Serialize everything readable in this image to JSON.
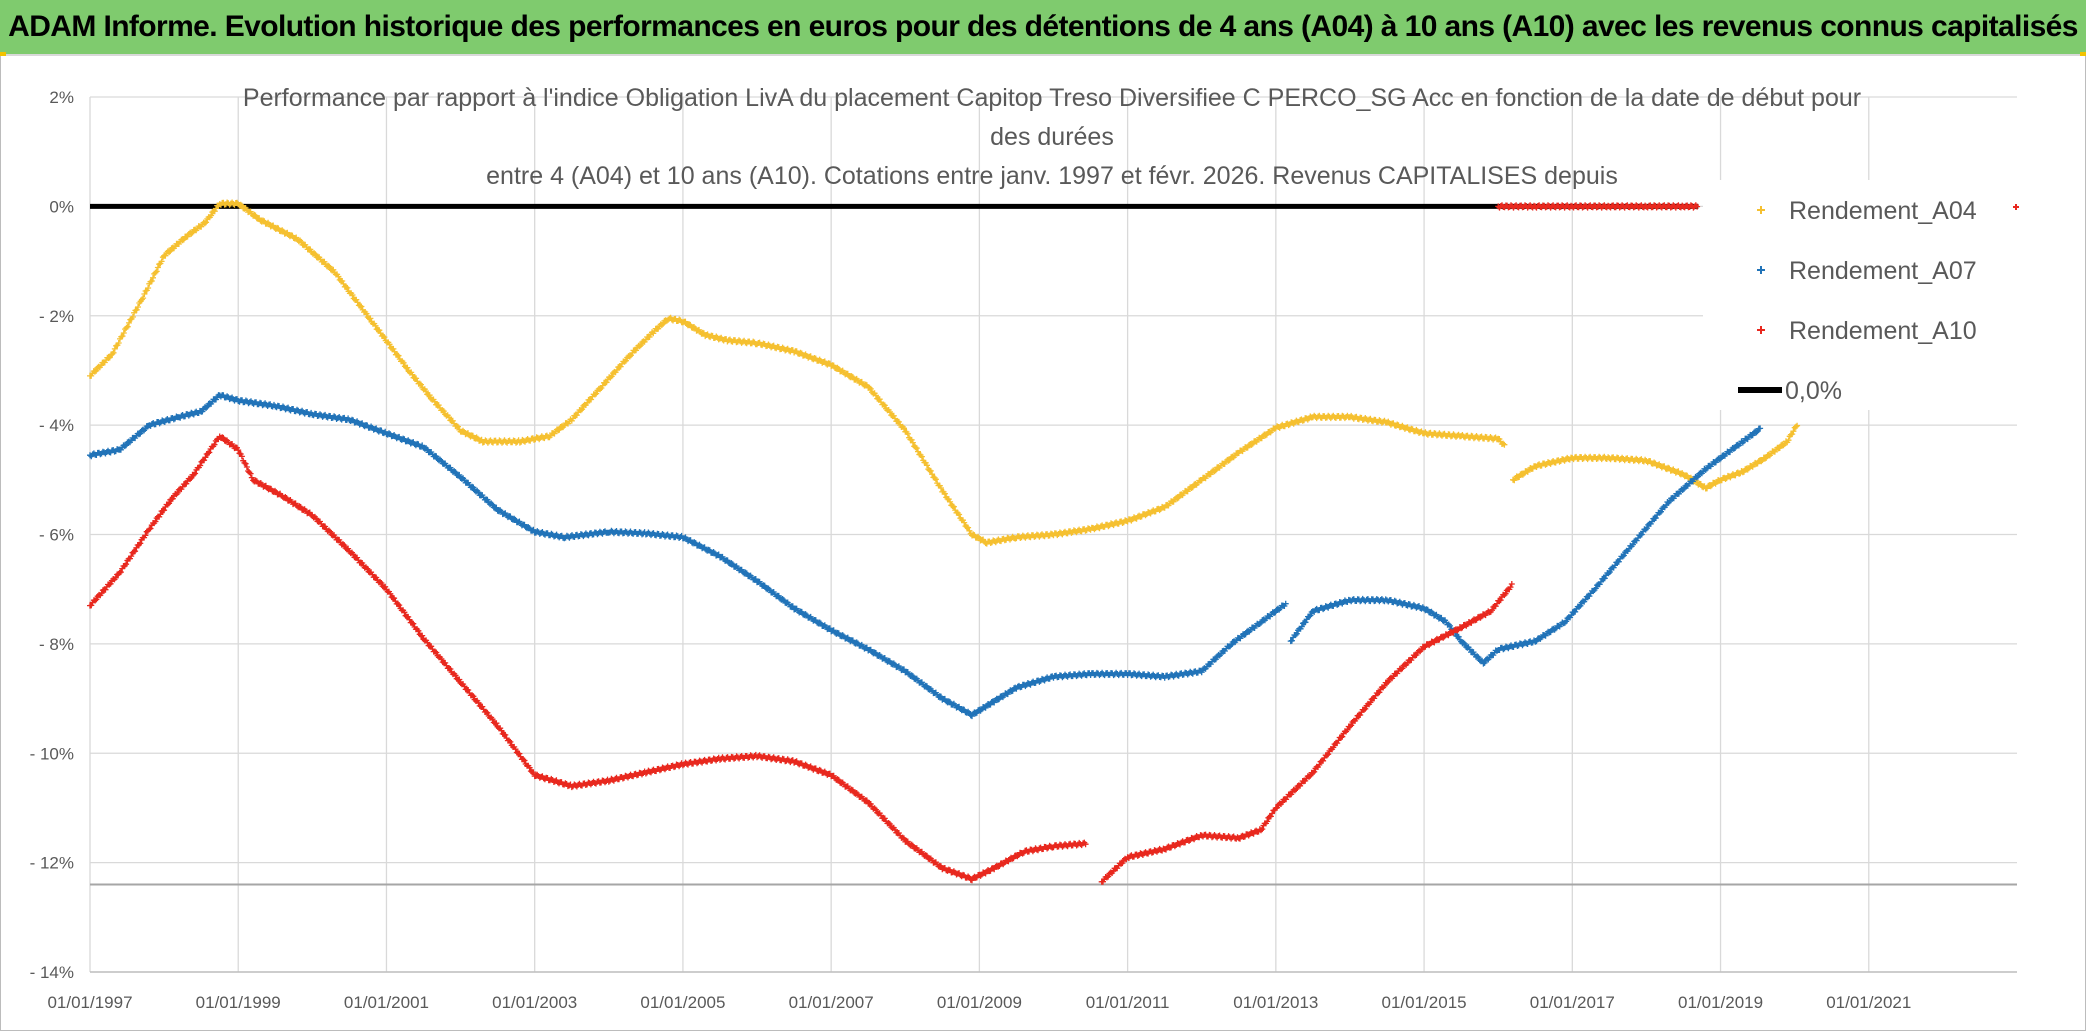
{
  "banner": {
    "title": "ADAM Informe. Evolution historique des performances en euros pour des détentions de 4 ans (A04) à 10 ans (A10) avec les revenus connus capitalisés"
  },
  "chart_data": {
    "type": "scatter",
    "title_lines": [
      "Performance par rapport à l'indice Obligation LivA  du placement Capitop Treso Diversifiee C PERCO_SG Acc en fonction de la date de début pour",
      "des durées",
      "entre 4 (A04) et 10 ans (A10). Cotations entre janv. 1997 et févr. 2026. Revenus CAPITALISES depuis"
    ],
    "xlabel": "",
    "ylabel": "",
    "x_tick_labels": [
      "01/01/1997",
      "01/01/1999",
      "01/01/2001",
      "01/01/2003",
      "01/01/2005",
      "01/01/2007",
      "01/01/2009",
      "01/01/2011",
      "01/01/2013",
      "01/01/2015",
      "01/01/2017",
      "01/01/2019",
      "01/01/2021"
    ],
    "xlim": [
      1997.0,
      2023.0
    ],
    "y_tick_labels": [
      "2%",
      "0%",
      "- 2%",
      "- 4%",
      "- 6%",
      "- 8%",
      "- 10%",
      "- 12%",
      "- 14%"
    ],
    "y_tick_values": [
      2,
      0,
      -2,
      -4,
      -6,
      -8,
      -10,
      -12,
      -14
    ],
    "ylim": [
      -14,
      2
    ],
    "reference_hline": -12.4,
    "legend_position": "right",
    "series": [
      {
        "name": "Rendement_A04",
        "color": "#f5c030",
        "marker": "+",
        "segments": [
          [
            [
              1997.0,
              -3.1
            ],
            [
              1997.3,
              -2.7
            ],
            [
              1997.7,
              -1.7
            ],
            [
              1998.0,
              -0.9
            ],
            [
              1998.3,
              -0.55
            ],
            [
              1998.55,
              -0.3
            ],
            [
              1998.75,
              0.05
            ],
            [
              1999.0,
              0.05
            ],
            [
              1999.3,
              -0.25
            ],
            [
              1999.8,
              -0.6
            ],
            [
              2000.3,
              -1.2
            ],
            [
              2000.8,
              -2.1
            ],
            [
              2001.3,
              -3.0
            ],
            [
              2001.6,
              -3.5
            ],
            [
              2002.0,
              -4.1
            ],
            [
              2002.3,
              -4.3
            ],
            [
              2002.8,
              -4.3
            ],
            [
              2003.2,
              -4.2
            ],
            [
              2003.5,
              -3.9
            ],
            [
              2003.9,
              -3.3
            ],
            [
              2004.3,
              -2.7
            ],
            [
              2004.6,
              -2.3
            ],
            [
              2004.8,
              -2.05
            ],
            [
              2005.0,
              -2.1
            ],
            [
              2005.3,
              -2.35
            ],
            [
              2005.6,
              -2.45
            ],
            [
              2006.0,
              -2.5
            ],
            [
              2006.5,
              -2.65
            ],
            [
              2007.0,
              -2.9
            ],
            [
              2007.5,
              -3.3
            ],
            [
              2008.0,
              -4.1
            ],
            [
              2008.5,
              -5.2
            ],
            [
              2008.9,
              -6.0
            ],
            [
              2009.1,
              -6.15
            ],
            [
              2009.5,
              -6.05
            ],
            [
              2010.0,
              -6.0
            ],
            [
              2010.5,
              -5.9
            ],
            [
              2011.0,
              -5.75
            ],
            [
              2011.5,
              -5.5
            ],
            [
              2012.0,
              -5.0
            ],
            [
              2012.5,
              -4.5
            ],
            [
              2013.0,
              -4.05
            ],
            [
              2013.5,
              -3.85
            ],
            [
              2014.0,
              -3.85
            ],
            [
              2014.5,
              -3.95
            ],
            [
              2015.0,
              -4.15
            ],
            [
              2015.5,
              -4.2
            ],
            [
              2016.0,
              -4.25
            ],
            [
              2016.1,
              -4.4
            ]
          ],
          [
            [
              2016.2,
              -5.0
            ],
            [
              2016.5,
              -4.75
            ],
            [
              2017.0,
              -4.6
            ],
            [
              2017.5,
              -4.6
            ],
            [
              2018.0,
              -4.65
            ],
            [
              2018.5,
              -4.9
            ],
            [
              2018.8,
              -5.15
            ],
            [
              2019.0,
              -5.0
            ],
            [
              2019.3,
              -4.85
            ],
            [
              2019.6,
              -4.6
            ],
            [
              2019.9,
              -4.3
            ],
            [
              2020.05,
              -3.95
            ]
          ]
        ]
      },
      {
        "name": "Rendement_A07",
        "color": "#2173b8",
        "marker": "+",
        "segments": [
          [
            [
              1997.0,
              -4.55
            ],
            [
              1997.4,
              -4.45
            ],
            [
              1997.8,
              -4.0
            ],
            [
              1998.2,
              -3.85
            ],
            [
              1998.5,
              -3.75
            ],
            [
              1998.75,
              -3.45
            ],
            [
              1999.0,
              -3.55
            ],
            [
              1999.5,
              -3.65
            ],
            [
              2000.0,
              -3.8
            ],
            [
              2000.5,
              -3.9
            ],
            [
              2001.0,
              -4.15
            ],
            [
              2001.5,
              -4.4
            ],
            [
              2002.0,
              -4.95
            ],
            [
              2002.5,
              -5.55
            ],
            [
              2003.0,
              -5.95
            ],
            [
              2003.4,
              -6.05
            ],
            [
              2004.0,
              -5.95
            ],
            [
              2004.5,
              -5.98
            ],
            [
              2005.0,
              -6.05
            ],
            [
              2005.5,
              -6.4
            ],
            [
              2006.0,
              -6.85
            ],
            [
              2006.5,
              -7.35
            ],
            [
              2007.0,
              -7.75
            ],
            [
              2007.5,
              -8.1
            ],
            [
              2008.0,
              -8.5
            ],
            [
              2008.5,
              -9.0
            ],
            [
              2008.9,
              -9.3
            ],
            [
              2009.2,
              -9.05
            ],
            [
              2009.5,
              -8.8
            ],
            [
              2010.0,
              -8.6
            ],
            [
              2010.5,
              -8.55
            ],
            [
              2011.0,
              -8.55
            ],
            [
              2011.5,
              -8.6
            ],
            [
              2012.0,
              -8.5
            ],
            [
              2012.4,
              -8.0
            ],
            [
              2012.8,
              -7.6
            ],
            [
              2013.15,
              -7.25
            ]
          ],
          [
            [
              2013.2,
              -7.95
            ],
            [
              2013.5,
              -7.4
            ],
            [
              2014.0,
              -7.2
            ],
            [
              2014.5,
              -7.2
            ],
            [
              2015.0,
              -7.35
            ],
            [
              2015.3,
              -7.6
            ],
            [
              2015.5,
              -7.95
            ],
            [
              2015.8,
              -8.35
            ],
            [
              2016.0,
              -8.1
            ],
            [
              2016.5,
              -7.95
            ],
            [
              2016.9,
              -7.6
            ],
            [
              2017.3,
              -7.0
            ],
            [
              2017.8,
              -6.2
            ],
            [
              2018.3,
              -5.4
            ],
            [
              2018.8,
              -4.8
            ],
            [
              2019.3,
              -4.3
            ],
            [
              2019.55,
              -4.05
            ]
          ]
        ]
      },
      {
        "name": "Rendement_A10",
        "color": "#e8281e",
        "marker": "+",
        "segments": [
          [
            [
              1997.0,
              -7.3
            ],
            [
              1997.4,
              -6.7
            ],
            [
              1997.8,
              -5.9
            ],
            [
              1998.1,
              -5.35
            ],
            [
              1998.4,
              -4.9
            ],
            [
              1998.75,
              -4.2
            ],
            [
              1999.0,
              -4.45
            ],
            [
              1999.2,
              -5.0
            ],
            [
              1999.6,
              -5.3
            ],
            [
              2000.0,
              -5.65
            ],
            [
              2000.5,
              -6.3
            ],
            [
              2001.0,
              -7.0
            ],
            [
              2001.5,
              -7.9
            ],
            [
              2002.0,
              -8.7
            ],
            [
              2002.5,
              -9.5
            ],
            [
              2003.0,
              -10.4
            ],
            [
              2003.5,
              -10.6
            ],
            [
              2004.0,
              -10.5
            ],
            [
              2004.5,
              -10.35
            ],
            [
              2005.0,
              -10.2
            ],
            [
              2005.5,
              -10.1
            ],
            [
              2006.0,
              -10.05
            ],
            [
              2006.5,
              -10.15
            ],
            [
              2007.0,
              -10.4
            ],
            [
              2007.5,
              -10.9
            ],
            [
              2008.0,
              -11.6
            ],
            [
              2008.5,
              -12.1
            ],
            [
              2008.9,
              -12.3
            ],
            [
              2009.2,
              -12.1
            ],
            [
              2009.6,
              -11.8
            ],
            [
              2010.0,
              -11.7
            ],
            [
              2010.45,
              -11.65
            ]
          ],
          [
            [
              2010.65,
              -12.35
            ],
            [
              2011.0,
              -11.9
            ],
            [
              2011.5,
              -11.75
            ],
            [
              2012.0,
              -11.5
            ],
            [
              2012.5,
              -11.55
            ],
            [
              2012.8,
              -11.4
            ],
            [
              2013.0,
              -11.0
            ],
            [
              2013.5,
              -10.35
            ],
            [
              2014.0,
              -9.5
            ],
            [
              2014.5,
              -8.7
            ],
            [
              2015.0,
              -8.05
            ],
            [
              2015.5,
              -7.7
            ],
            [
              2015.9,
              -7.4
            ],
            [
              2016.2,
              -6.9
            ]
          ],
          [
            [
              2016.0,
              0.0
            ],
            [
              2016.5,
              0.0
            ],
            [
              2017.0,
              0.0
            ],
            [
              2017.5,
              0.0
            ],
            [
              2018.0,
              0.0
            ],
            [
              2018.5,
              0.0
            ],
            [
              2018.7,
              0.0
            ]
          ]
        ]
      }
    ],
    "zero_line": {
      "name": "0,0%",
      "color": "#000000",
      "value": 0,
      "x_range": [
        1997.0,
        2018.7
      ]
    },
    "legend": [
      {
        "label": "Rendement_A04",
        "color": "#f5c030",
        "symbol": "+"
      },
      {
        "label": "Rendement_A07",
        "color": "#2173b8",
        "symbol": "+"
      },
      {
        "label": "Rendement_A10",
        "color": "#e8281e",
        "symbol": "+"
      },
      {
        "label": "0,0%",
        "color": "#000000",
        "symbol": "line"
      }
    ]
  }
}
